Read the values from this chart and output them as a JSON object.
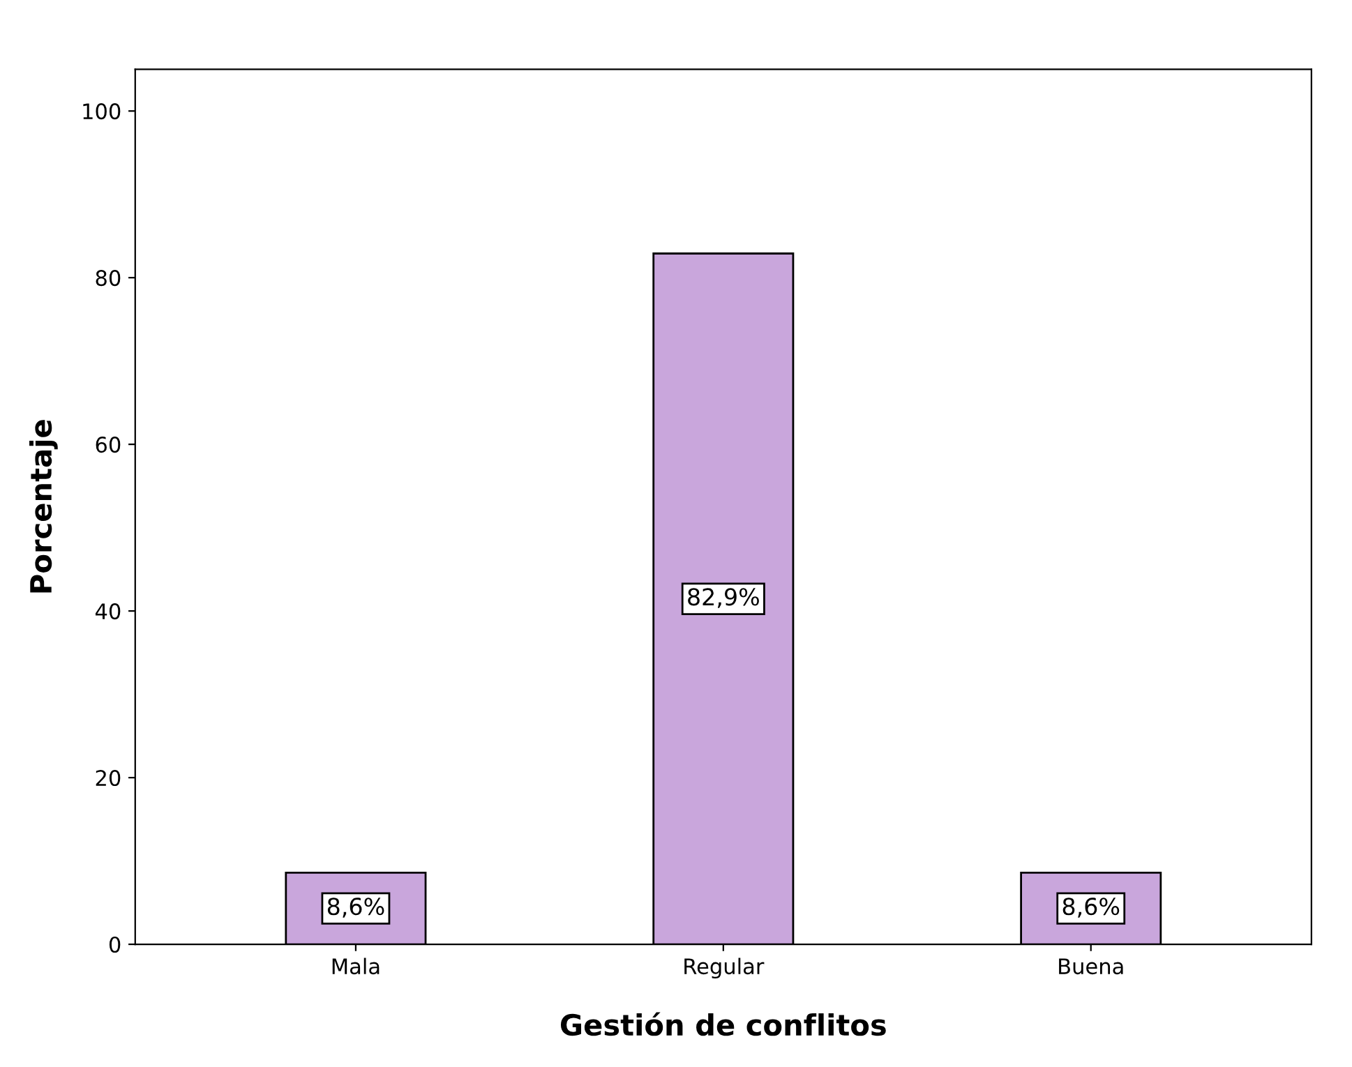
{
  "chart_data": {
    "type": "bar",
    "xlabel": "Gestión de conflitos",
    "ylabel": "Porcentaje",
    "categories": [
      "Mala",
      "Regular",
      "Buena"
    ],
    "values": [
      8.6,
      82.9,
      8.6
    ],
    "value_labels": [
      "8,6%",
      "82,9%",
      "8,6%"
    ],
    "color": "#c9a6dc",
    "ylim": [
      0,
      105
    ],
    "yticks": [
      0,
      20,
      40,
      60,
      80,
      100
    ],
    "grid": false
  }
}
